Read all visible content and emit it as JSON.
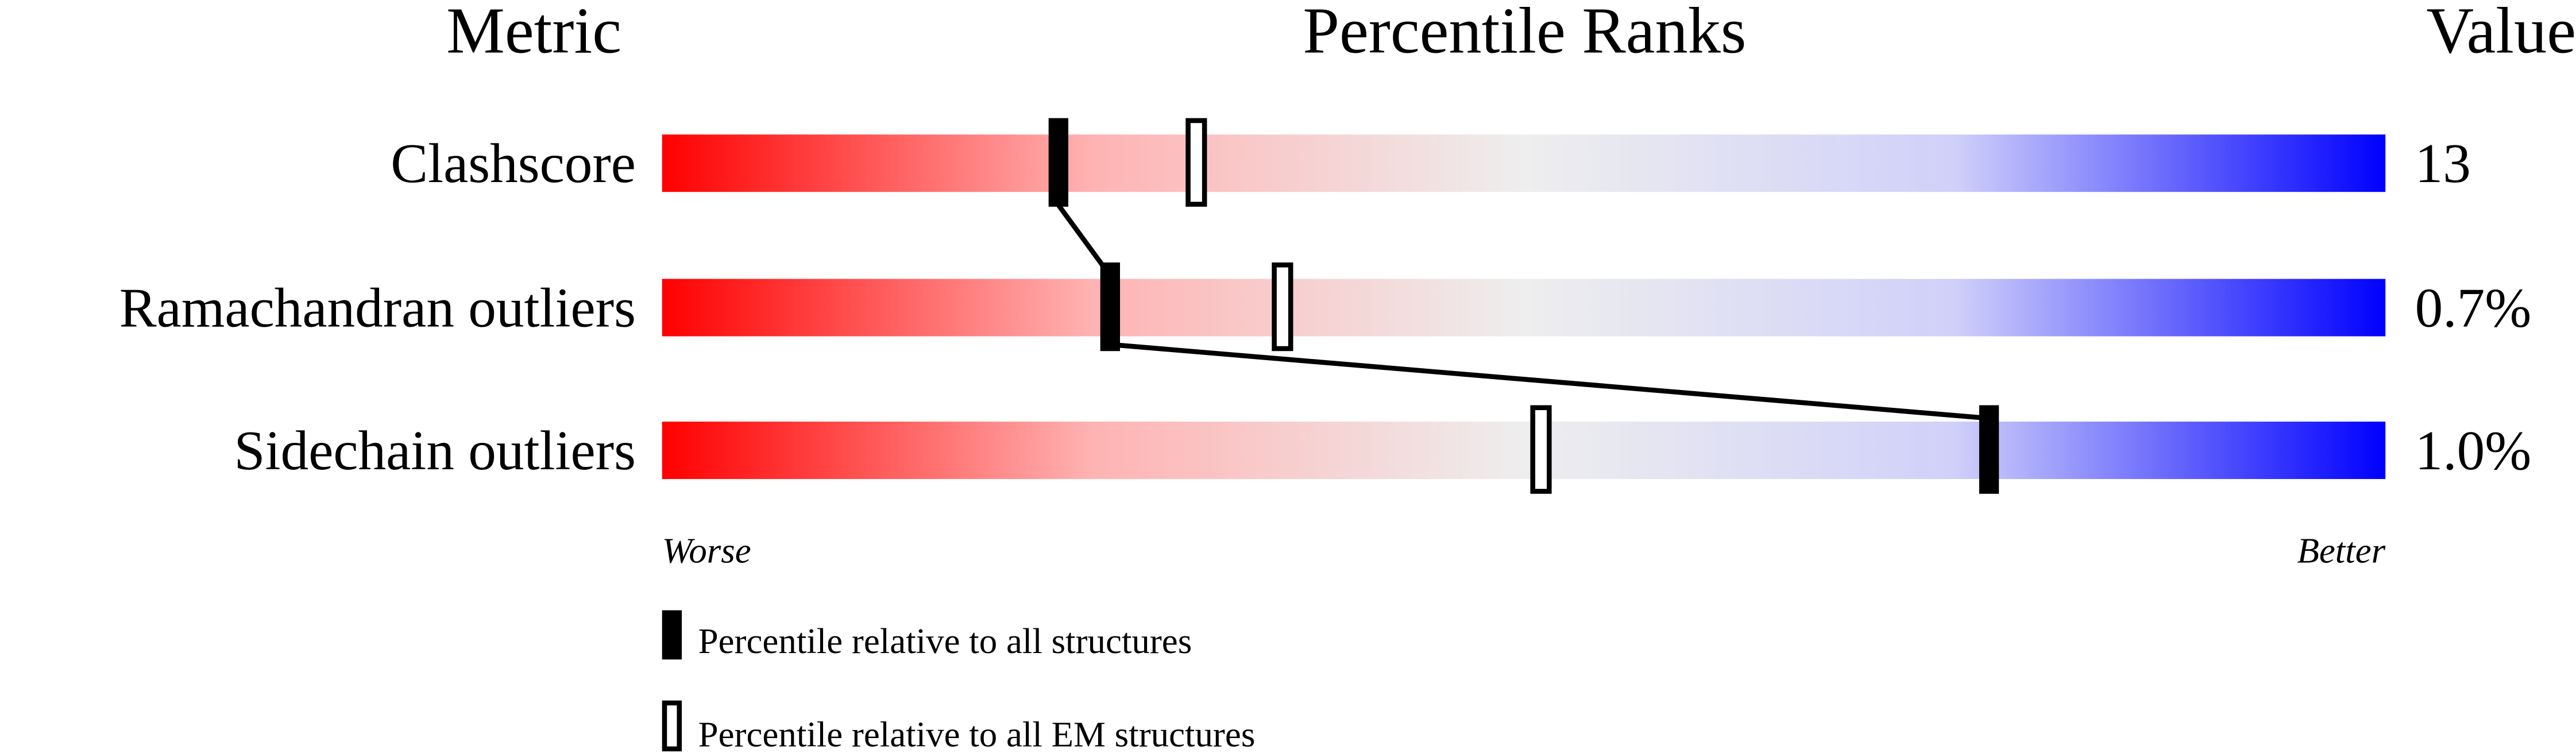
{
  "chart_data": {
    "type": "percentile-ranks",
    "headers": {
      "metric": "Metric",
      "ranks": "Percentile Ranks",
      "value": "Value"
    },
    "xlim": [
      0,
      100
    ],
    "scale_labels": {
      "low": "Worse",
      "high": "Better"
    },
    "gradient_colors": [
      "#ff0000",
      "#ffb3b3",
      "#eeeeee",
      "#d0d0fa",
      "#0000ff"
    ],
    "rows": [
      {
        "metric": "Clashscore",
        "value": "13",
        "percentile_all": 23,
        "percentile_em": 31
      },
      {
        "metric": "Ramachandran outliers",
        "value": "0.7%",
        "percentile_all": 26,
        "percentile_em": 36
      },
      {
        "metric": "Sidechain outliers",
        "value": "1.0%",
        "percentile_all": 77,
        "percentile_em": 51
      }
    ],
    "legend": [
      {
        "marker": "filled",
        "label": "Percentile relative to all structures"
      },
      {
        "marker": "open",
        "label": "Percentile relative to all EM structures"
      }
    ]
  }
}
